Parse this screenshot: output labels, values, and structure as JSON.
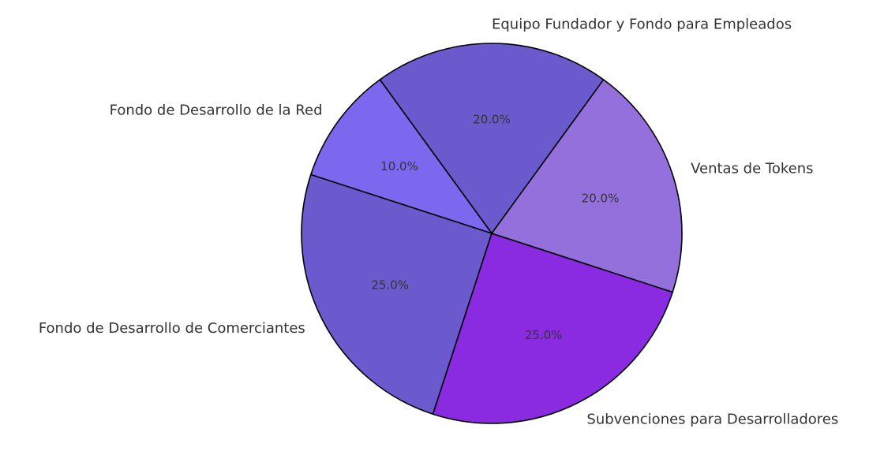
{
  "chart_data": {
    "type": "pie",
    "title": "",
    "slices": [
      {
        "label": "Equipo Fundador y Fondo para Empleados",
        "value": 20.0,
        "pct_label": "20.0%",
        "color": "#6a5acd"
      },
      {
        "label": "Fondo de Desarrollo de la Red",
        "value": 10.0,
        "pct_label": "10.0%",
        "color": "#7b68ee"
      },
      {
        "label": "Fondo de Desarrollo de Comerciantes",
        "value": 25.0,
        "pct_label": "25.0%",
        "color": "#6a5acd"
      },
      {
        "label": "Subvenciones para Desarrolladores",
        "value": 25.0,
        "pct_label": "25.0%",
        "color": "#8a2be2"
      },
      {
        "label": "Ventas de Tokens",
        "value": 20.0,
        "pct_label": "20.0%",
        "color": "#9370db"
      }
    ],
    "edge_color": "#000000",
    "start_angle_deg": 54
  }
}
